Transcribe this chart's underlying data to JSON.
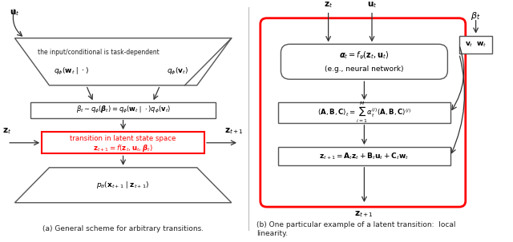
{
  "fig_width": 6.4,
  "fig_height": 3.03,
  "bg_color": "#ffffff",
  "left": {
    "caption": "(a) General scheme for arbitrary transitions.",
    "trap_top_label": "the input/conditional is task-dependent",
    "q_phi_w": "$q_\\phi(\\mathbf{w}_t \\mid \\cdot)$",
    "q_phi_v": "$q_\\phi(\\mathbf{v}_t)$",
    "beta_label": "$\\beta_t \\sim q_\\phi(\\boldsymbol{\\beta}_t) = q_\\phi(\\mathbf{w}_t \\mid \\cdot)q_\\phi(\\mathbf{v}_t)$",
    "trans_line1": "transition in latent state space",
    "trans_line2": "$\\mathbf{z}_{t+1} = f(\\mathbf{z}_t, \\mathbf{u}_t, \\boldsymbol{\\beta}_t)$",
    "ptheta": "$p_\\theta(\\mathbf{x}_{t+1} \\mid \\mathbf{z}_{t+1})$",
    "z_t": "$\\mathbf{z}_t$",
    "z_t1": "$\\mathbf{z}_{t+1}$",
    "u_t": "$\\mathbf{u}_t$"
  },
  "right": {
    "caption_line1": "(b) One particular example of a latent transition:  local",
    "caption_line2": "linearity.",
    "alpha_line1": "$\\boldsymbol{\\alpha}_t = f_\\psi(\\mathbf{z}_t, \\mathbf{u}_t)$",
    "alpha_line2": "(e.g., neural network)",
    "abc_label": "$(\\mathbf{A}, \\mathbf{B}, \\mathbf{C})_t = \\sum_{i=1}^{M} \\alpha_t^{(i)}(\\mathbf{A}, \\mathbf{B}, \\mathbf{C})^{(i)}$",
    "z_label": "$\\mathbf{z}_{t+1} = \\mathbf{A}_t\\mathbf{z}_t + \\mathbf{B}_t\\mathbf{u}_t + \\mathbf{C}_t\\mathbf{w}_t$",
    "beta_t": "$\\beta_t$",
    "vw_label": "$\\mathbf{v}_t \\ \\ \\mathbf{w}_t$",
    "z_t": "$\\mathbf{z}_t$",
    "u_t": "$\\mathbf{u}_t$",
    "z_t1": "$\\mathbf{z}_{t+1}$"
  }
}
